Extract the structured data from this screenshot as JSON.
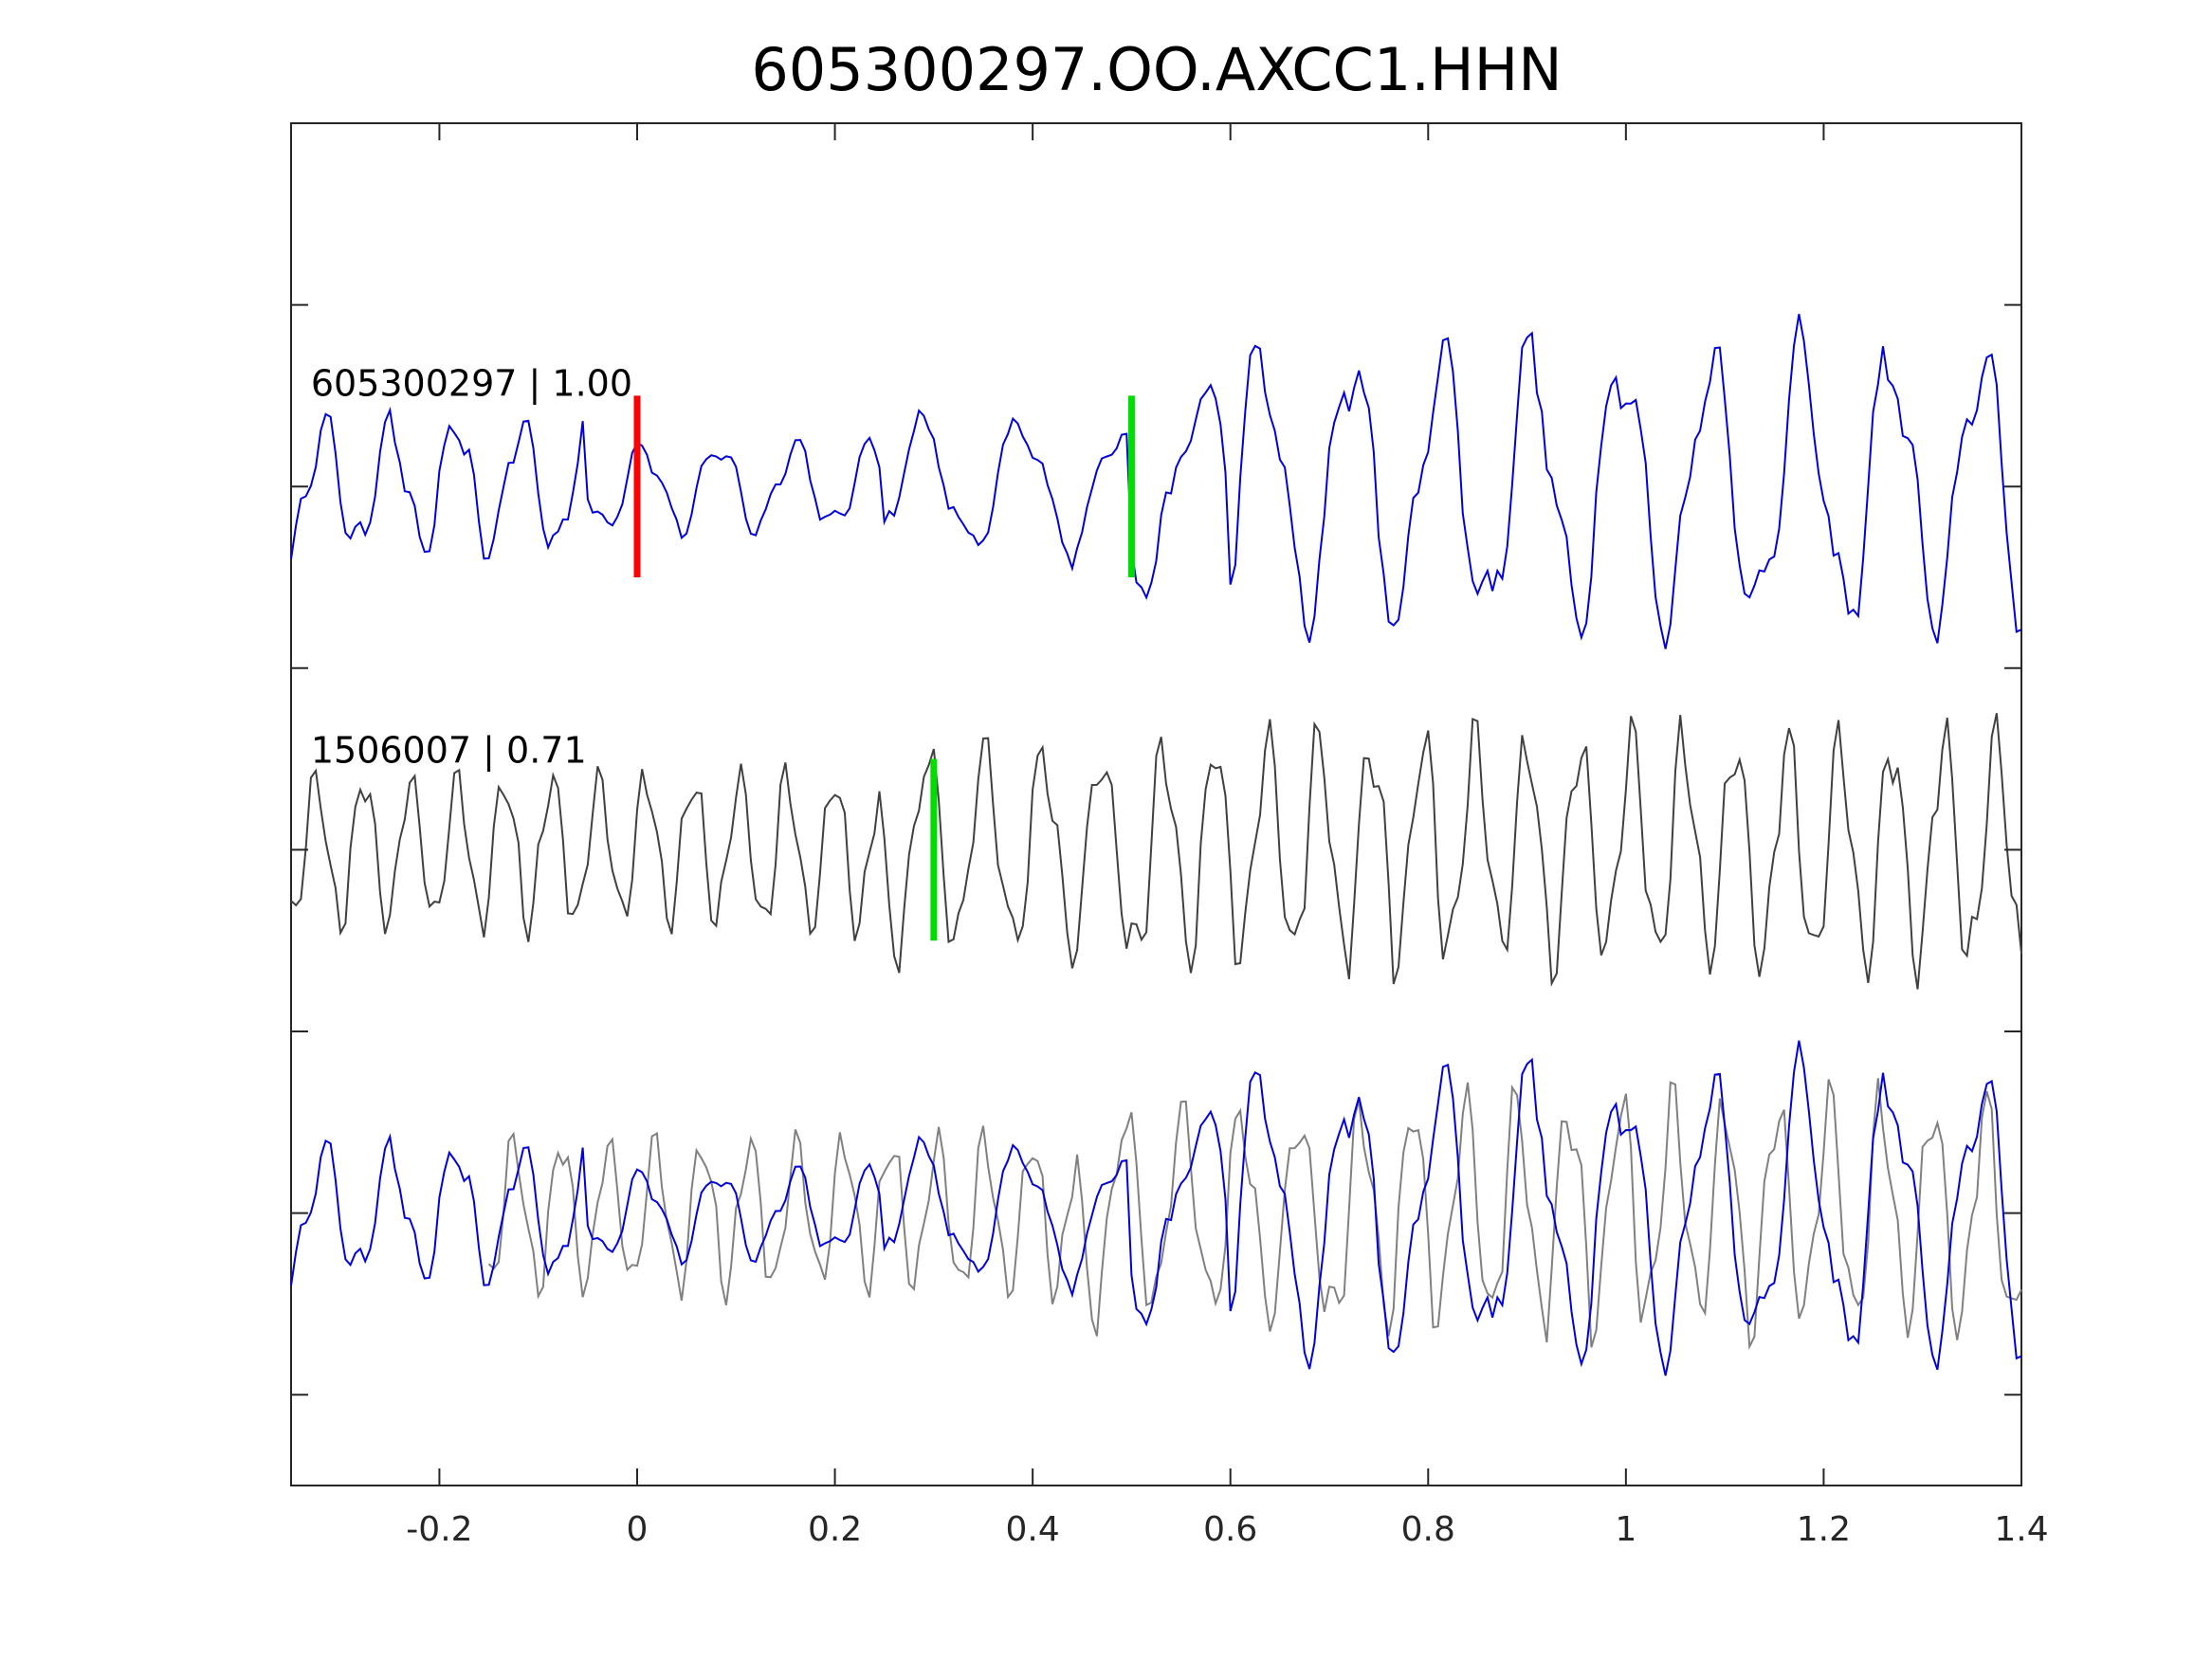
{
  "chart_data": {
    "type": "line",
    "title": "605300297.OO.AXCC1.HHN",
    "xlabel": "",
    "ylabel": "",
    "xlim": [
      -0.35,
      1.4
    ],
    "xticks": [
      -0.2,
      0,
      0.2,
      0.4,
      0.6,
      0.8,
      1,
      1.2,
      1.4
    ],
    "xtick_labels": [
      "-0.2",
      "0",
      "0.2",
      "0.4",
      "0.6",
      "0.8",
      "1",
      "1.2",
      "1.4"
    ],
    "ylim": [
      0,
      7.5
    ],
    "yticks": [
      0.5,
      1.5,
      2.5,
      3.5,
      4.5,
      5.5,
      6.5
    ],
    "ytick_labels": [
      "",
      "",
      "",
      "",
      "",
      "",
      ""
    ],
    "grid": false,
    "legend": "none",
    "sample_dt": 0.005,
    "colors": {
      "master": "#0000dd",
      "template": "#404040",
      "overlay_template": "#808080",
      "p_pick": "#ff0000",
      "s_pick": "#00dd00",
      "axis": "#262626"
    },
    "traces": [
      {
        "label": "605300297 | 1.00",
        "offset": 5.5,
        "label_x": -0.33,
        "label_y": 6.0,
        "color": "#0000dd",
        "picks": [
          {
            "phase": "P",
            "x": 0.0,
            "color": "#ff0000"
          },
          {
            "phase": "S",
            "x": 0.5,
            "color": "#00dd00"
          }
        ],
        "pick_halfheight": 0.5,
        "segments": [
          {
            "t0": -0.35,
            "t1": -0.05,
            "f": 15,
            "a": 0.42,
            "ph": 0.0
          },
          {
            "t0": -0.05,
            "t1": 0.25,
            "f": 13,
            "a": 0.28,
            "ph": 1.1
          },
          {
            "t0": 0.25,
            "t1": 0.5,
            "f": 10,
            "a": 0.42,
            "ph": 2.3
          },
          {
            "t0": 0.5,
            "t1": 0.6,
            "f": 9,
            "a": 0.62,
            "ph": 0.7
          },
          {
            "t0": 0.6,
            "t1": 1.4,
            "f": 11,
            "a": 0.88,
            "ph": 1.9
          }
        ]
      },
      {
        "label": "1506007 | 0.71",
        "offset": 3.5,
        "label_x": -0.33,
        "label_y": 3.98,
        "color": "#404040",
        "picks": [
          {
            "phase": "S",
            "x": 0.3,
            "color": "#00dd00"
          }
        ],
        "pick_halfheight": 0.5,
        "segments": [
          {
            "t0": -0.35,
            "t1": 0.25,
            "f": 21,
            "a": 0.5,
            "ph": 0.4
          },
          {
            "t0": 0.25,
            "t1": 0.5,
            "f": 17,
            "a": 0.65,
            "ph": 1.7
          },
          {
            "t0": 0.5,
            "t1": 1.4,
            "f": 19,
            "a": 0.75,
            "ph": 0.9
          }
        ]
      }
    ],
    "overlay": {
      "offset": 1.5,
      "shift": 0.2
    }
  }
}
